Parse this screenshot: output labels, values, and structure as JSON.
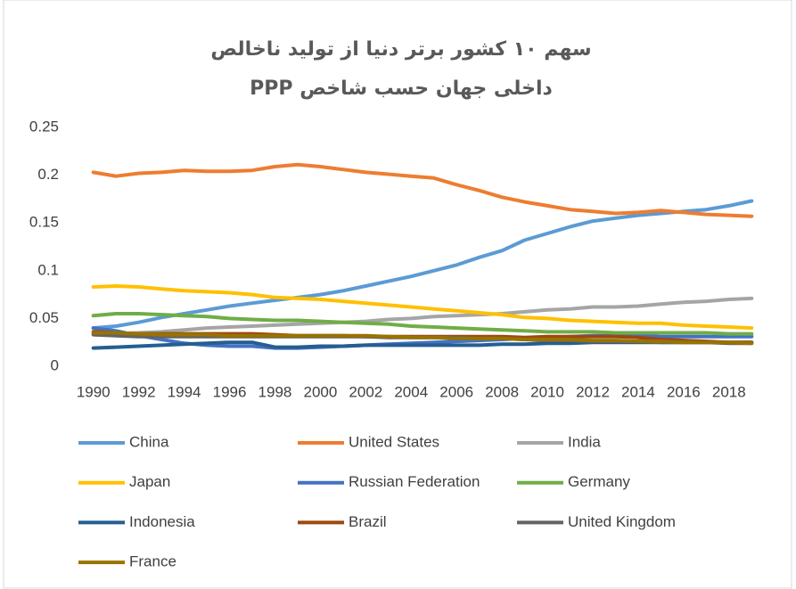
{
  "chart_data": {
    "type": "line",
    "title": "سهم ۱۰ کشور برتر دنیا از تولید ناخالص داخلی جهان حسب شاخص PPP",
    "x": [
      1990,
      1991,
      1992,
      1993,
      1994,
      1995,
      1996,
      1997,
      1998,
      1999,
      2000,
      2001,
      2002,
      2003,
      2004,
      2005,
      2006,
      2007,
      2008,
      2009,
      2010,
      2011,
      2012,
      2013,
      2014,
      2015,
      2016,
      2017,
      2018,
      2019
    ],
    "xlim": [
      1989.5,
      2019.5
    ],
    "xticks": [
      1990,
      1992,
      1994,
      1996,
      1998,
      2000,
      2002,
      2004,
      2006,
      2008,
      2010,
      2012,
      2014,
      2016,
      2018
    ],
    "ylim": [
      0,
      0.25
    ],
    "yticks": [
      0,
      0.05,
      0.1,
      0.15,
      0.2,
      0.25
    ],
    "grid": false,
    "legend": "bottom",
    "series": [
      {
        "name": "China",
        "color": "#5b9bd5",
        "values": [
          0.04,
          0.042,
          0.046,
          0.051,
          0.055,
          0.059,
          0.063,
          0.066,
          0.069,
          0.072,
          0.075,
          0.079,
          0.084,
          0.089,
          0.094,
          0.1,
          0.106,
          0.114,
          0.121,
          0.132,
          0.139,
          0.146,
          0.152,
          0.155,
          0.158,
          0.16,
          0.162,
          0.164,
          0.168,
          0.173
        ]
      },
      {
        "name": "United States",
        "color": "#ed7d31",
        "values": [
          0.203,
          0.199,
          0.202,
          0.203,
          0.205,
          0.204,
          0.204,
          0.205,
          0.209,
          0.211,
          0.209,
          0.206,
          0.203,
          0.201,
          0.199,
          0.197,
          0.19,
          0.184,
          0.177,
          0.172,
          0.168,
          0.164,
          0.162,
          0.16,
          0.161,
          0.163,
          0.161,
          0.159,
          0.158,
          0.157
        ]
      },
      {
        "name": "India",
        "color": "#a5a5a5",
        "values": [
          0.034,
          0.034,
          0.035,
          0.036,
          0.038,
          0.04,
          0.041,
          0.042,
          0.043,
          0.044,
          0.045,
          0.046,
          0.047,
          0.049,
          0.05,
          0.052,
          0.053,
          0.054,
          0.055,
          0.057,
          0.059,
          0.06,
          0.062,
          0.062,
          0.063,
          0.065,
          0.067,
          0.068,
          0.07,
          0.071
        ]
      },
      {
        "name": "Japan",
        "color": "#ffc000",
        "values": [
          0.083,
          0.084,
          0.083,
          0.081,
          0.079,
          0.078,
          0.077,
          0.075,
          0.072,
          0.071,
          0.07,
          0.068,
          0.066,
          0.064,
          0.062,
          0.06,
          0.058,
          0.056,
          0.054,
          0.051,
          0.05,
          0.048,
          0.047,
          0.046,
          0.045,
          0.045,
          0.043,
          0.042,
          0.041,
          0.04
        ]
      },
      {
        "name": "Russian Federation",
        "color": "#4472c4",
        "values": [
          0.04,
          0.037,
          0.032,
          0.028,
          0.024,
          0.022,
          0.021,
          0.021,
          0.019,
          0.019,
          0.02,
          0.021,
          0.022,
          0.023,
          0.024,
          0.025,
          0.026,
          0.027,
          0.028,
          0.029,
          0.03,
          0.031,
          0.032,
          0.032,
          0.032,
          0.031,
          0.031,
          0.031,
          0.031,
          0.031
        ]
      },
      {
        "name": "Germany",
        "color": "#70ad47",
        "values": [
          0.053,
          0.055,
          0.055,
          0.054,
          0.053,
          0.052,
          0.05,
          0.049,
          0.048,
          0.048,
          0.047,
          0.046,
          0.045,
          0.044,
          0.042,
          0.041,
          0.04,
          0.039,
          0.038,
          0.037,
          0.036,
          0.036,
          0.036,
          0.035,
          0.035,
          0.035,
          0.035,
          0.035,
          0.034,
          0.034
        ]
      },
      {
        "name": "Indonesia",
        "color": "#255e91",
        "values": [
          0.019,
          0.02,
          0.021,
          0.022,
          0.023,
          0.024,
          0.025,
          0.025,
          0.02,
          0.02,
          0.021,
          0.021,
          0.022,
          0.022,
          0.022,
          0.022,
          0.022,
          0.022,
          0.023,
          0.023,
          0.024,
          0.024,
          0.025,
          0.025,
          0.025,
          0.025,
          0.025,
          0.025,
          0.025,
          0.025
        ]
      },
      {
        "name": "Brazil",
        "color": "#9e480e",
        "values": [
          0.036,
          0.035,
          0.034,
          0.034,
          0.034,
          0.034,
          0.034,
          0.034,
          0.033,
          0.032,
          0.032,
          0.032,
          0.031,
          0.031,
          0.031,
          0.031,
          0.031,
          0.031,
          0.031,
          0.03,
          0.031,
          0.031,
          0.031,
          0.031,
          0.03,
          0.028,
          0.027,
          0.026,
          0.025,
          0.025
        ]
      },
      {
        "name": "United Kingdom",
        "color": "#636363",
        "values": [
          0.033,
          0.032,
          0.031,
          0.031,
          0.031,
          0.031,
          0.031,
          0.031,
          0.031,
          0.031,
          0.031,
          0.031,
          0.031,
          0.03,
          0.03,
          0.03,
          0.03,
          0.029,
          0.029,
          0.028,
          0.027,
          0.027,
          0.026,
          0.026,
          0.026,
          0.025,
          0.025,
          0.025,
          0.024,
          0.024
        ]
      },
      {
        "name": "France",
        "color": "#997300",
        "values": [
          0.035,
          0.035,
          0.034,
          0.033,
          0.033,
          0.033,
          0.032,
          0.032,
          0.032,
          0.032,
          0.032,
          0.032,
          0.032,
          0.031,
          0.03,
          0.03,
          0.029,
          0.029,
          0.029,
          0.028,
          0.028,
          0.028,
          0.027,
          0.027,
          0.026,
          0.026,
          0.025,
          0.025,
          0.025,
          0.024
        ]
      }
    ]
  }
}
